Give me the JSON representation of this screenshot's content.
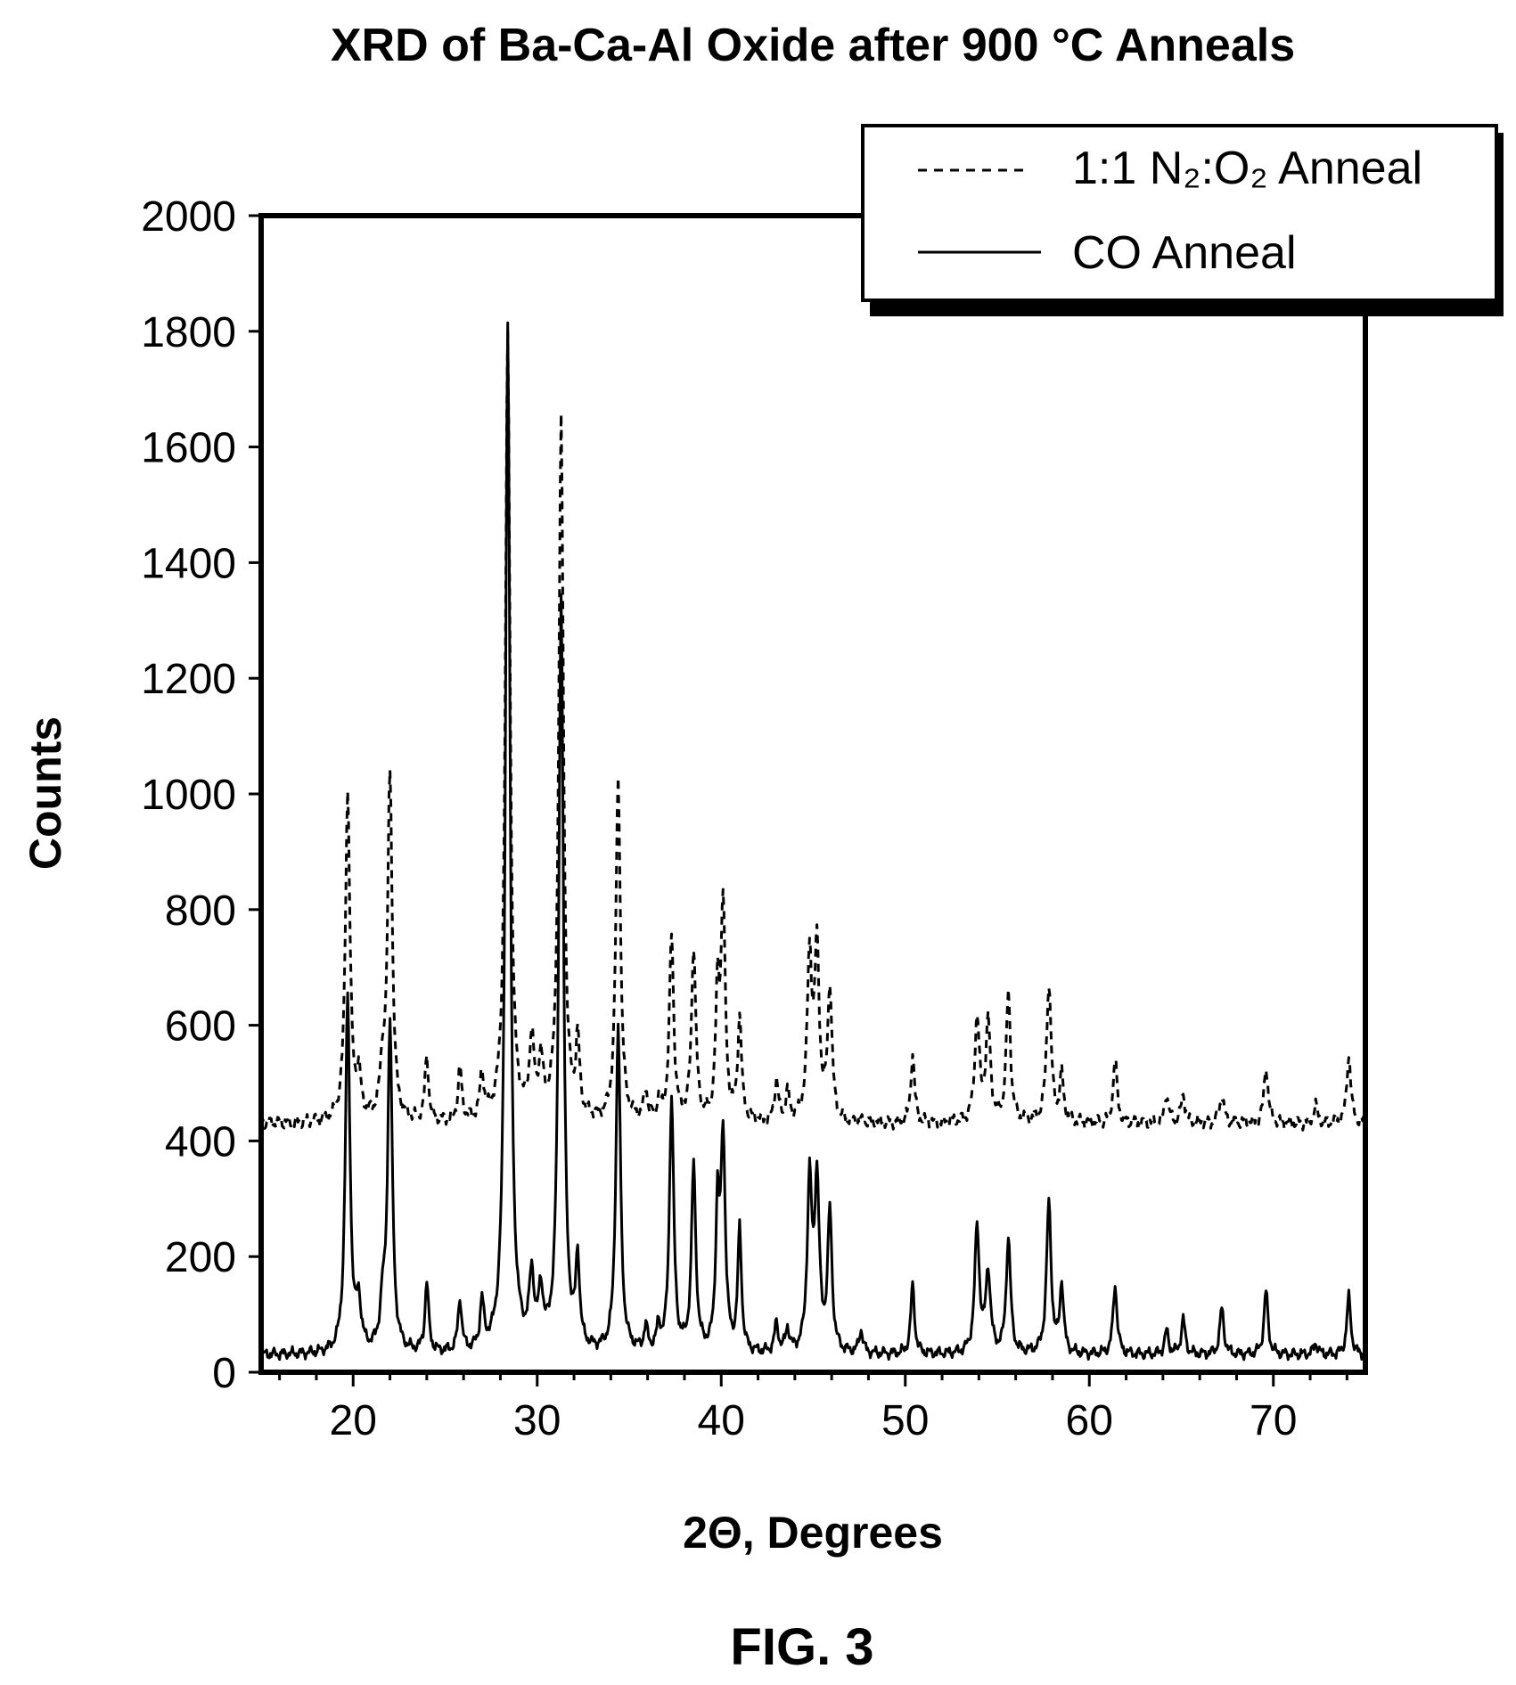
{
  "chart_data": {
    "type": "line",
    "title": "XRD of Ba-Ca-Al Oxide after 900 °C Anneals",
    "xlabel": "2Θ, Degrees",
    "ylabel": "Counts",
    "xlim": [
      15,
      75
    ],
    "ylim": [
      0,
      2000
    ],
    "xticks": [
      20,
      30,
      40,
      50,
      60,
      70
    ],
    "yticks": [
      0,
      200,
      400,
      600,
      800,
      1000,
      1200,
      1400,
      1600,
      1800,
      2000
    ],
    "grid": false,
    "legend_position": "top-right",
    "series": [
      {
        "name": "1:1 N₂:O₂ Anneal",
        "style": "dashed",
        "color": "#000000",
        "baseline": 430,
        "peaks": [
          [
            19.7,
            1000,
            0.15
          ],
          [
            20.3,
            500,
            0.15
          ],
          [
            21.6,
            510,
            0.15
          ],
          [
            22.0,
            1030,
            0.15
          ],
          [
            24.0,
            540,
            0.12
          ],
          [
            25.8,
            520,
            0.12
          ],
          [
            27.0,
            510,
            0.12
          ],
          [
            28.4,
            1790,
            0.15
          ],
          [
            29.7,
            560,
            0.15
          ],
          [
            30.2,
            520,
            0.15
          ],
          [
            31.3,
            1640,
            0.15
          ],
          [
            32.2,
            560,
            0.12
          ],
          [
            34.4,
            1020,
            0.15
          ],
          [
            35.9,
            480,
            0.12
          ],
          [
            36.6,
            460,
            0.12
          ],
          [
            37.3,
            750,
            0.14
          ],
          [
            38.5,
            730,
            0.14
          ],
          [
            39.8,
            640,
            0.12
          ],
          [
            40.1,
            800,
            0.14
          ],
          [
            41.0,
            610,
            0.12
          ],
          [
            43.0,
            500,
            0.12
          ],
          [
            43.6,
            480,
            0.12
          ],
          [
            44.8,
            710,
            0.15
          ],
          [
            45.2,
            720,
            0.15
          ],
          [
            45.9,
            660,
            0.14
          ],
          [
            50.4,
            550,
            0.12
          ],
          [
            53.9,
            610,
            0.15
          ],
          [
            54.5,
            600,
            0.15
          ],
          [
            55.6,
            650,
            0.14
          ],
          [
            57.8,
            670,
            0.15
          ],
          [
            58.5,
            510,
            0.12
          ],
          [
            61.4,
            540,
            0.13
          ],
          [
            64.2,
            480,
            0.13
          ],
          [
            65.1,
            480,
            0.13
          ],
          [
            67.2,
            480,
            0.13
          ],
          [
            69.6,
            530,
            0.13
          ],
          [
            72.3,
            460,
            0.13
          ],
          [
            74.1,
            550,
            0.13
          ]
        ]
      },
      {
        "name": "CO Anneal",
        "style": "solid",
        "color": "#000000",
        "baseline": 30,
        "peaks": [
          [
            19.7,
            640,
            0.15
          ],
          [
            20.3,
            110,
            0.15
          ],
          [
            21.6,
            100,
            0.15
          ],
          [
            22.0,
            600,
            0.15
          ],
          [
            24.0,
            150,
            0.12
          ],
          [
            25.8,
            120,
            0.12
          ],
          [
            27.0,
            110,
            0.12
          ],
          [
            28.4,
            1810,
            0.15
          ],
          [
            29.7,
            150,
            0.15
          ],
          [
            30.2,
            120,
            0.15
          ],
          [
            31.3,
            1340,
            0.15
          ],
          [
            32.2,
            180,
            0.12
          ],
          [
            34.4,
            590,
            0.15
          ],
          [
            35.9,
            70,
            0.12
          ],
          [
            36.6,
            70,
            0.12
          ],
          [
            37.3,
            470,
            0.14
          ],
          [
            38.5,
            350,
            0.14
          ],
          [
            39.8,
            270,
            0.12
          ],
          [
            40.1,
            400,
            0.14
          ],
          [
            41.0,
            240,
            0.12
          ],
          [
            43.0,
            80,
            0.12
          ],
          [
            43.6,
            70,
            0.12
          ],
          [
            44.8,
            320,
            0.15
          ],
          [
            45.2,
            320,
            0.15
          ],
          [
            45.9,
            270,
            0.14
          ],
          [
            47.6,
            70,
            0.12
          ],
          [
            50.4,
            150,
            0.12
          ],
          [
            53.9,
            250,
            0.15
          ],
          [
            54.5,
            170,
            0.15
          ],
          [
            55.6,
            230,
            0.14
          ],
          [
            57.8,
            290,
            0.15
          ],
          [
            58.5,
            150,
            0.12
          ],
          [
            61.4,
            150,
            0.13
          ],
          [
            64.2,
            70,
            0.13
          ],
          [
            65.1,
            90,
            0.13
          ],
          [
            67.2,
            110,
            0.13
          ],
          [
            69.6,
            140,
            0.13
          ],
          [
            72.3,
            50,
            0.13
          ],
          [
            74.1,
            130,
            0.13
          ]
        ]
      }
    ]
  },
  "figure_label": "FIG. 3"
}
